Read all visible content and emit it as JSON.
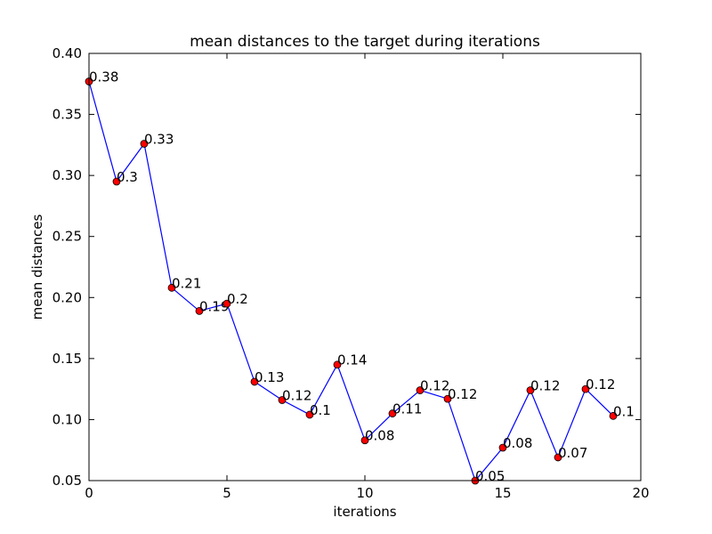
{
  "chart_data": {
    "type": "line",
    "title": "mean distances to the target during iterations",
    "xlabel": "iterations",
    "ylabel": "mean distances",
    "xlim": [
      0,
      20
    ],
    "ylim": [
      0.05,
      0.4
    ],
    "xticks": [
      0,
      5,
      10,
      15,
      20
    ],
    "xtick_labels": [
      "0",
      "5",
      "10",
      "15",
      "20"
    ],
    "yticks": [
      0.05,
      0.1,
      0.15,
      0.2,
      0.25,
      0.3,
      0.35,
      0.4
    ],
    "ytick_labels": [
      "0.05",
      "0.10",
      "0.15",
      "0.20",
      "0.25",
      "0.30",
      "0.35",
      "0.40"
    ],
    "grid": false,
    "series": [
      {
        "x": [
          0,
          1,
          2,
          3,
          4,
          5,
          6,
          7,
          8,
          9,
          10,
          11,
          12,
          13,
          14,
          15,
          16,
          17,
          18,
          19
        ],
        "y": [
          0.377,
          0.295,
          0.326,
          0.208,
          0.189,
          0.195,
          0.131,
          0.116,
          0.104,
          0.145,
          0.083,
          0.105,
          0.124,
          0.117,
          0.05,
          0.077,
          0.124,
          0.069,
          0.125,
          0.103
        ],
        "labels": [
          "0.38",
          "0.3",
          "0.33",
          "0.21",
          "0.19",
          "0.2",
          "0.13",
          "0.12",
          "0.1",
          "0.14",
          "0.08",
          "0.11",
          "0.12",
          "0.12",
          "0.05",
          "0.08",
          "0.12",
          "0.07",
          "0.12",
          "0.1"
        ],
        "line_color": "#0000ff",
        "marker_color": "#ff0000",
        "marker_edge_color": "#000000"
      }
    ]
  }
}
